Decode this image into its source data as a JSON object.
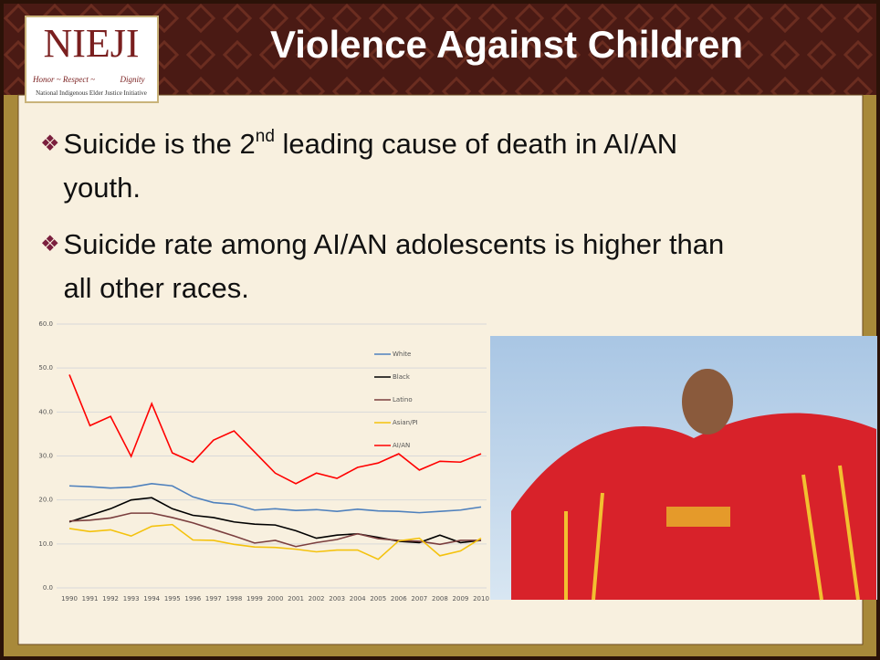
{
  "header": {
    "title": "Violence Against Children",
    "logo": {
      "name": "NIEJI",
      "motto_1": "Honor ~ Respect ~",
      "motto_2": "Dignity",
      "caption": "National Indigenous Elder Justice Initiative"
    }
  },
  "bullets": [
    [
      "Suicide is the 2",
      "nd",
      " leading cause of death in AI/AN youth."
    ],
    [
      "Suicide rate among AI/AN adolescents is higher than all other races."
    ]
  ],
  "chart_data": {
    "type": "line",
    "categories": [
      "1990",
      "1991",
      "1992",
      "1993",
      "1994",
      "1995",
      "1996",
      "1997",
      "1998",
      "1999",
      "2000",
      "2001",
      "2002",
      "2003",
      "2004",
      "2005",
      "2006",
      "2007",
      "2008",
      "2009",
      "2010"
    ],
    "ylim": [
      0,
      60
    ],
    "yticks": [
      {
        "value": 0,
        "label": "0.0"
      },
      {
        "value": 10,
        "label": "10.0"
      },
      {
        "value": 20,
        "label": "20.0"
      },
      {
        "value": 30,
        "label": "30.0"
      },
      {
        "value": 40,
        "label": "40.0"
      },
      {
        "value": 50,
        "label": "50.0"
      },
      {
        "value": 60,
        "label": "60.0"
      }
    ],
    "grid": true,
    "legend": "upper right",
    "series": [
      {
        "name": "White",
        "color": "#4f81bd",
        "values": [
          23.2,
          23.0,
          22.7,
          22.9,
          23.7,
          23.2,
          20.7,
          19.4,
          19.0,
          17.7,
          18.0,
          17.6,
          17.8,
          17.4,
          17.9,
          17.5,
          17.4,
          17.1,
          17.4,
          17.7,
          18.4
        ]
      },
      {
        "name": "Black",
        "color": "#000000",
        "values": [
          15.0,
          16.5,
          18.0,
          20.0,
          20.5,
          18.0,
          16.5,
          16.0,
          15.0,
          14.5,
          14.3,
          13.0,
          11.3,
          12.0,
          12.3,
          11.5,
          10.6,
          10.3,
          12.0,
          10.3,
          10.8
        ]
      },
      {
        "name": "Latino",
        "color": "#7b3f3f",
        "values": [
          15.2,
          15.4,
          15.9,
          17.0,
          17.0,
          16.0,
          14.8,
          13.3,
          11.8,
          10.2,
          10.8,
          9.4,
          10.3,
          11.0,
          12.3,
          11.2,
          10.8,
          10.6,
          9.9,
          10.8,
          10.8
        ]
      },
      {
        "name": "Asian/PI",
        "color": "#f4c20d",
        "values": [
          13.5,
          12.8,
          13.2,
          11.8,
          14.0,
          14.4,
          10.9,
          10.8,
          9.9,
          9.3,
          9.2,
          8.8,
          8.2,
          8.6,
          8.6,
          6.5,
          10.7,
          11.3,
          7.3,
          8.4,
          11.3
        ]
      },
      {
        "name": "AI/AN",
        "color": "#ff0000",
        "values": [
          48.5,
          36.9,
          39.0,
          29.9,
          41.9,
          30.7,
          28.6,
          33.6,
          35.7,
          30.9,
          26.1,
          23.7,
          26.1,
          24.9,
          27.4,
          28.4,
          30.5,
          26.8,
          28.8,
          28.6,
          30.5
        ]
      }
    ]
  }
}
